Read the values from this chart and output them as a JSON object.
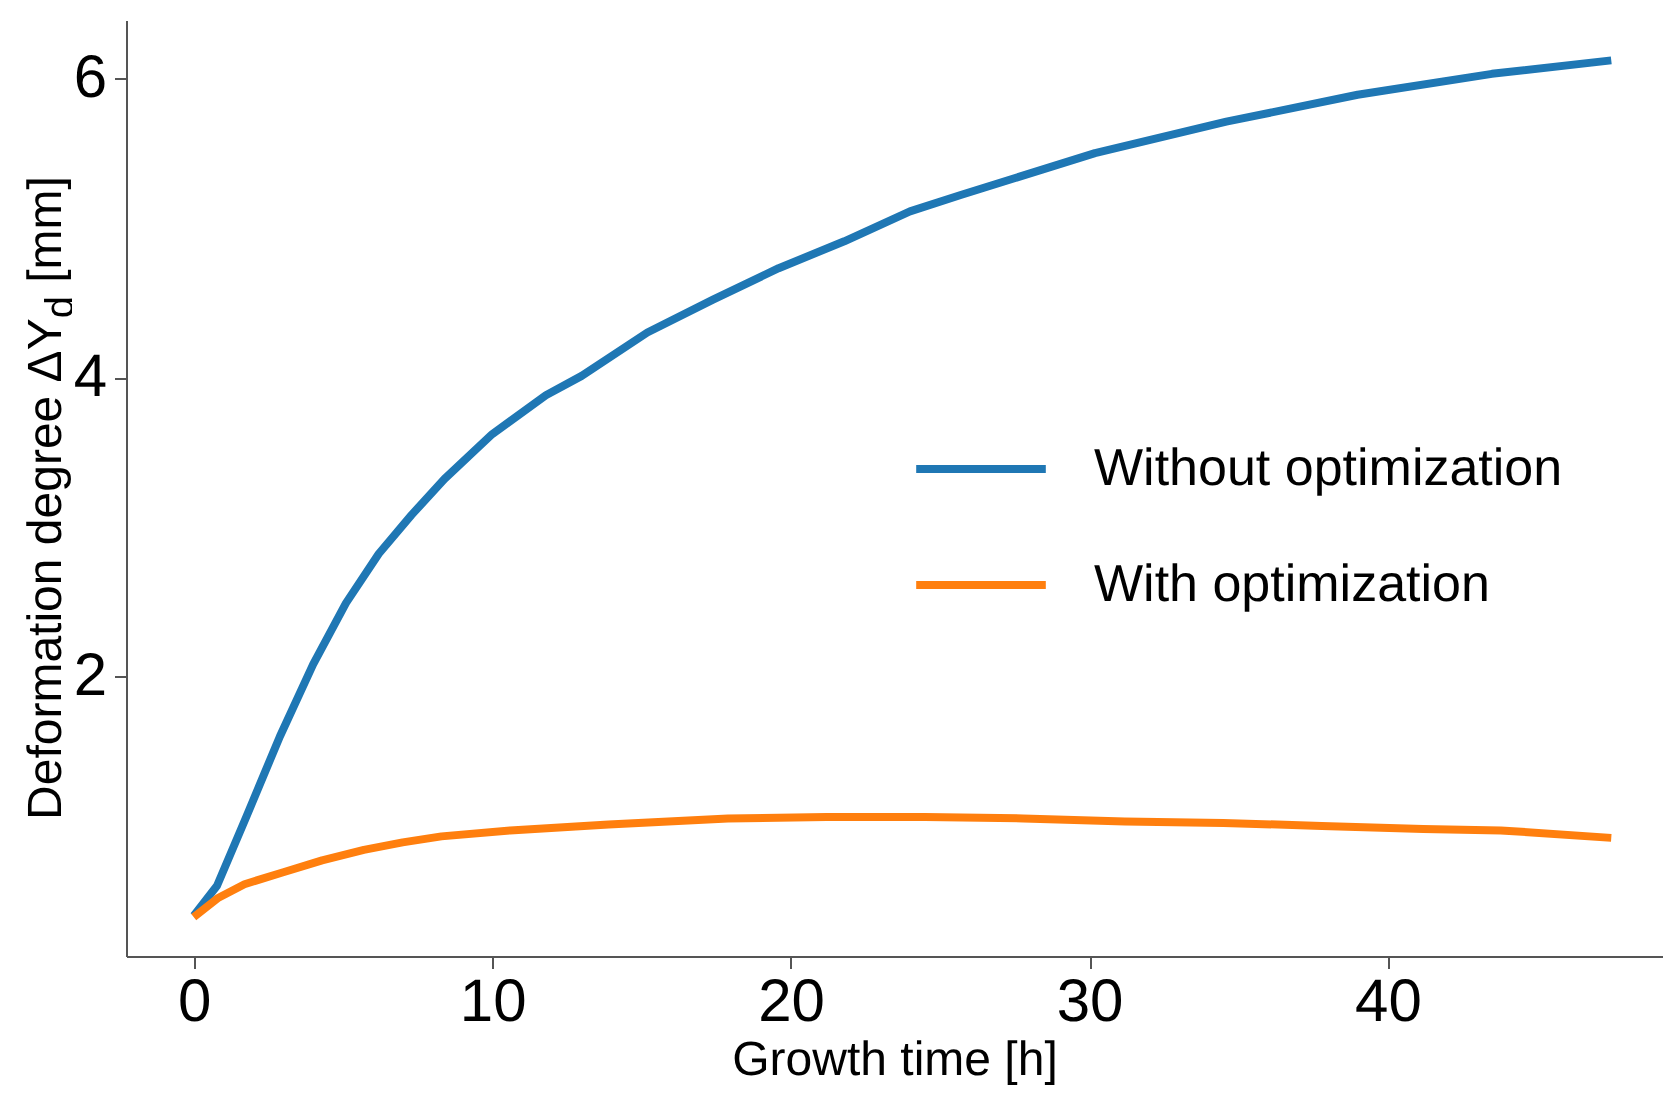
{
  "chart_data": {
    "type": "line",
    "xlabel": "Growth time [h]",
    "ylabel": "Deformation degree ΔY$_{d}$ [mm]",
    "xlim": [
      -2.27,
      49.2
    ],
    "ylim": [
      0.13,
      6.39
    ],
    "xticks": [
      0,
      10,
      20,
      30,
      40
    ],
    "yticks": [
      2,
      4,
      6
    ],
    "grid": false,
    "legend": "right",
    "line_style": "solid",
    "marker": "none",
    "series": [
      {
        "name": "Without optimization",
        "color": "#1f77b4",
        "x": [
          0,
          0.78,
          1.78,
          2.89,
          4.0,
          5.1,
          6.2,
          7.3,
          8.4,
          10,
          11.8,
          13,
          15.2,
          17.4,
          19.6,
          21.8,
          24.0,
          25.7,
          30.2,
          34.6,
          39.0,
          43.5,
          47.5
        ],
        "values": [
          0.4,
          0.6,
          1.07,
          1.6,
          2.08,
          2.49,
          2.82,
          3.08,
          3.32,
          3.62,
          3.88,
          4.01,
          4.3,
          4.52,
          4.73,
          4.91,
          5.11,
          5.22,
          5.5,
          5.71,
          5.89,
          6.03,
          6.12
        ]
      },
      {
        "name": "With optimization",
        "color": "#ff7f0e",
        "x": [
          0,
          0.83,
          1.7,
          3.0,
          4.3,
          5.7,
          7.0,
          8.3,
          10.6,
          13.9,
          17.9,
          21.2,
          24.5,
          27.8,
          31.2,
          34.5,
          37.8,
          41.2,
          43.8,
          47.5
        ],
        "values": [
          0.39,
          0.52,
          0.61,
          0.69,
          0.77,
          0.84,
          0.89,
          0.93,
          0.97,
          1.01,
          1.05,
          1.06,
          1.06,
          1.05,
          1.03,
          1.02,
          1.0,
          0.98,
          0.97,
          0.92
        ]
      }
    ]
  }
}
